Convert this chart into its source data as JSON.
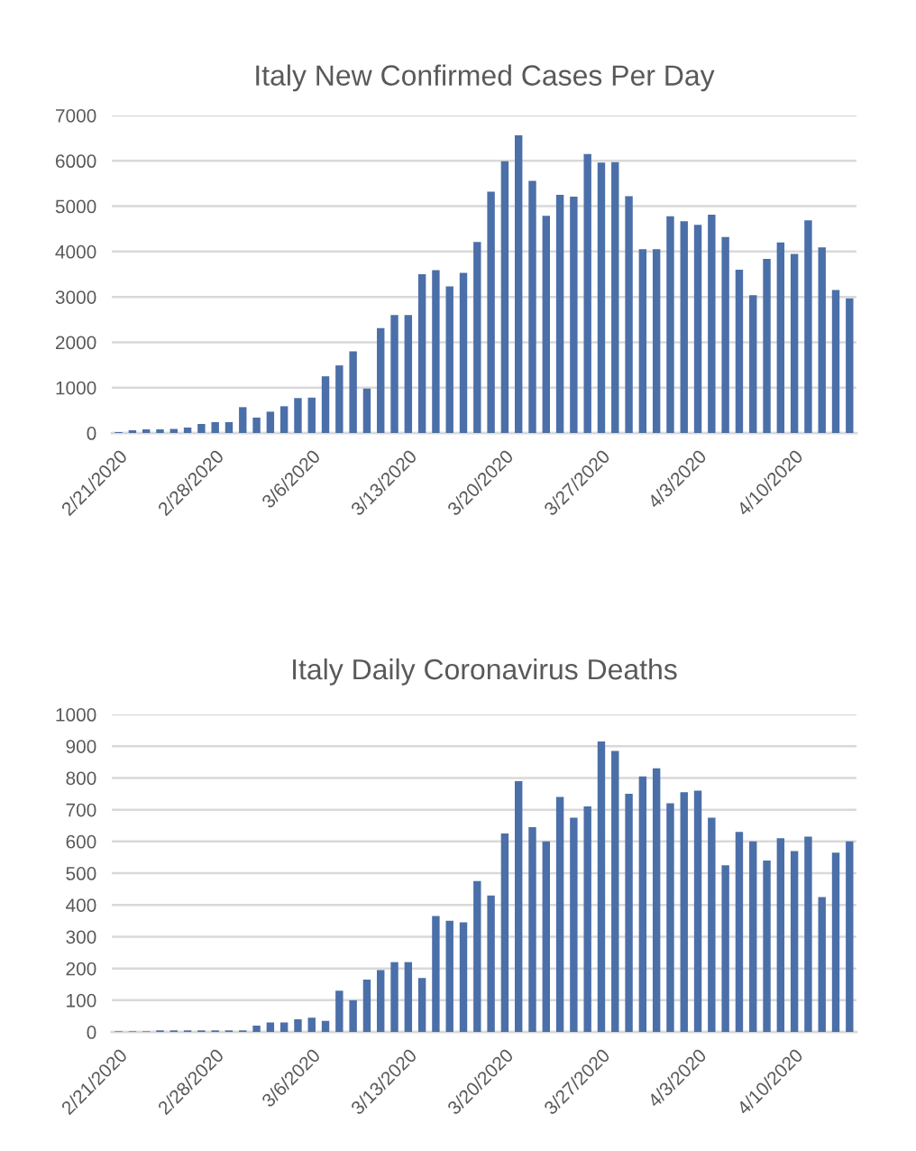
{
  "chart_data": [
    {
      "type": "bar",
      "title": "Italy New Confirmed Cases Per Day",
      "color": "#4b6fa8",
      "grid": "y",
      "ylim": [
        0,
        7000
      ],
      "yticks": [
        0,
        1000,
        2000,
        3000,
        4000,
        5000,
        6000,
        7000
      ],
      "categories": [
        "2/21/2020",
        null,
        null,
        null,
        null,
        null,
        null,
        "2/28/2020",
        null,
        null,
        null,
        null,
        null,
        null,
        "3/6/2020",
        null,
        null,
        null,
        null,
        null,
        null,
        "3/13/2020",
        null,
        null,
        null,
        null,
        null,
        null,
        "3/20/2020",
        null,
        null,
        null,
        null,
        null,
        null,
        "3/27/2020",
        null,
        null,
        null,
        null,
        null,
        null,
        "4/3/2020",
        null,
        null,
        null,
        null,
        null,
        null,
        "4/10/2020",
        null,
        null,
        null,
        null
      ],
      "values": [
        20,
        60,
        80,
        80,
        90,
        120,
        200,
        240,
        240,
        570,
        340,
        470,
        590,
        770,
        780,
        1250,
        1490,
        1800,
        980,
        2310,
        2600,
        2600,
        3500,
        3590,
        3230,
        3530,
        4210,
        5320,
        5990,
        6560,
        5560,
        4790,
        5250,
        5210,
        6150,
        5960,
        5970,
        5220,
        4050,
        4050,
        4780,
        4670,
        4590,
        4810,
        4320,
        3600,
        3040,
        3840,
        4200,
        3950,
        4690,
        4090,
        3150,
        2970
      ]
    },
    {
      "type": "bar",
      "title": "Italy Daily Coronavirus Deaths",
      "color": "#4b6fa8",
      "grid": "y",
      "ylim": [
        0,
        1000
      ],
      "yticks": [
        0,
        100,
        200,
        300,
        400,
        500,
        600,
        700,
        800,
        900,
        1000
      ],
      "categories": [
        "2/21/2020",
        null,
        null,
        null,
        null,
        null,
        null,
        "2/28/2020",
        null,
        null,
        null,
        null,
        null,
        null,
        "3/6/2020",
        null,
        null,
        null,
        null,
        null,
        null,
        "3/13/2020",
        null,
        null,
        null,
        null,
        null,
        null,
        "3/20/2020",
        null,
        null,
        null,
        null,
        null,
        null,
        "3/27/2020",
        null,
        null,
        null,
        null,
        null,
        null,
        "4/3/2020",
        null,
        null,
        null,
        null,
        null,
        null,
        "4/10/2020",
        null,
        null,
        null,
        null
      ],
      "values": [
        2,
        2,
        2,
        5,
        5,
        5,
        5,
        5,
        5,
        5,
        20,
        30,
        30,
        40,
        45,
        35,
        130,
        100,
        165,
        195,
        220,
        220,
        170,
        365,
        350,
        345,
        475,
        430,
        625,
        790,
        645,
        600,
        740,
        675,
        710,
        915,
        885,
        750,
        805,
        830,
        720,
        755,
        760,
        675,
        525,
        630,
        600,
        540,
        610,
        570,
        615,
        425,
        565,
        600
      ]
    }
  ]
}
